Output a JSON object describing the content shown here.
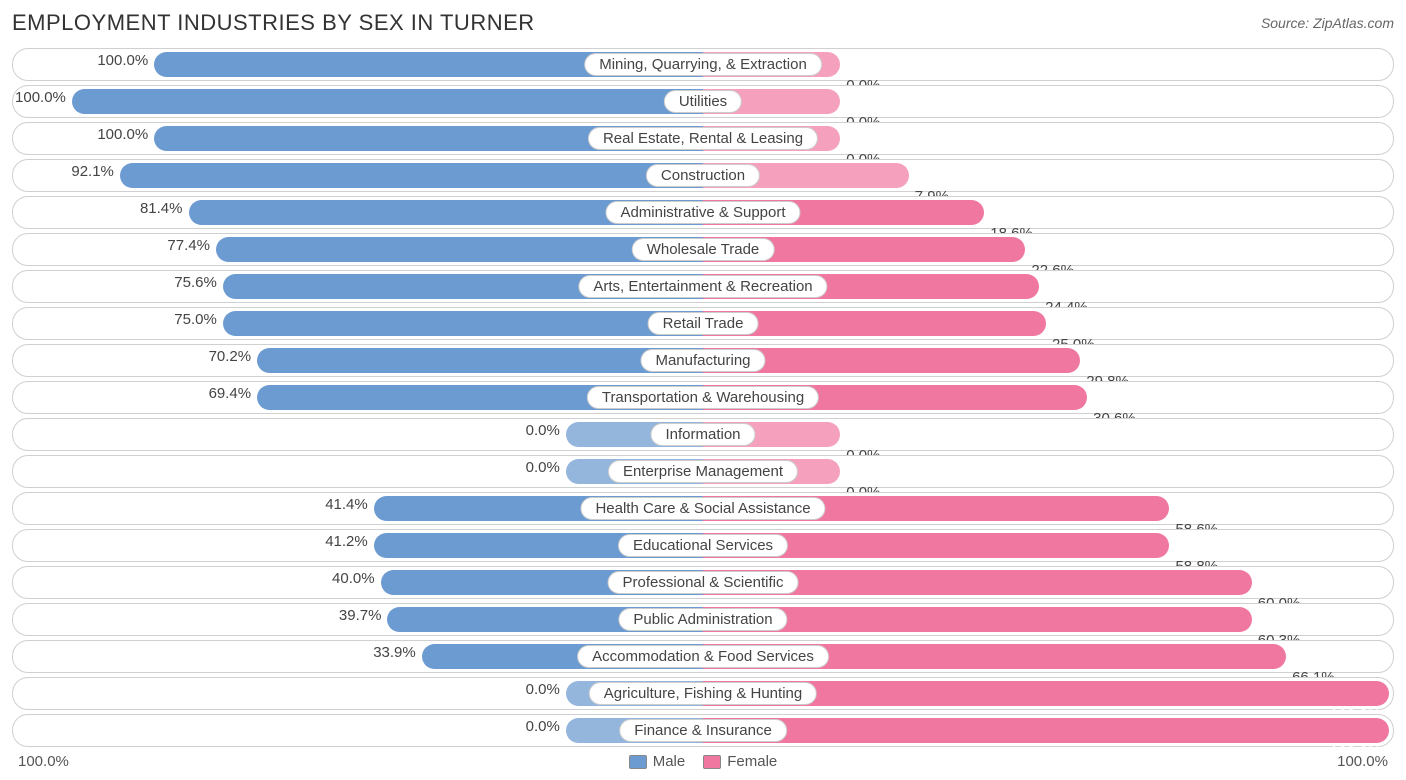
{
  "title": "EMPLOYMENT INDUSTRIES BY SEX IN TURNER",
  "source": "Source: ZipAtlas.com",
  "colors": {
    "male": "#6c9bd1",
    "male_light": "#94b6dd",
    "female": "#f078a0",
    "female_light": "#f5a1bd",
    "border": "#d0d0d0",
    "text": "#444444",
    "background": "#ffffff"
  },
  "legend": {
    "male_label": "Male",
    "female_label": "Female"
  },
  "axis": {
    "left": "100.0%",
    "right": "100.0%"
  },
  "chart": {
    "type": "diverging-bar",
    "default_bar_width_pct": 20,
    "rows": [
      {
        "category": "Mining, Quarrying, & Extraction",
        "male": 100.0,
        "female": 0.0,
        "male_width": 80,
        "female_width": 20,
        "female_light": true
      },
      {
        "category": "Utilities",
        "male": 100.0,
        "female": 0.0,
        "male_width": 92,
        "female_width": 20,
        "female_light": true
      },
      {
        "category": "Real Estate, Rental & Leasing",
        "male": 100.0,
        "female": 0.0,
        "male_width": 80,
        "female_width": 20,
        "female_light": true
      },
      {
        "category": "Construction",
        "male": 92.1,
        "female": 7.9,
        "male_width": 85,
        "female_width": 30,
        "female_light": true
      },
      {
        "category": "Administrative & Support",
        "male": 81.4,
        "female": 18.6,
        "male_width": 75,
        "female_width": 41
      },
      {
        "category": "Wholesale Trade",
        "male": 77.4,
        "female": 22.6,
        "male_width": 71,
        "female_width": 47
      },
      {
        "category": "Arts, Entertainment & Recreation",
        "male": 75.6,
        "female": 24.4,
        "male_width": 70,
        "female_width": 49
      },
      {
        "category": "Retail Trade",
        "male": 75.0,
        "female": 25.0,
        "male_width": 70,
        "female_width": 50
      },
      {
        "category": "Manufacturing",
        "male": 70.2,
        "female": 29.8,
        "male_width": 65,
        "female_width": 55
      },
      {
        "category": "Transportation & Warehousing",
        "male": 69.4,
        "female": 30.6,
        "male_width": 65,
        "female_width": 56
      },
      {
        "category": "Information",
        "male": 0.0,
        "female": 0.0,
        "male_width": 20,
        "female_width": 20,
        "male_light": true,
        "female_light": true
      },
      {
        "category": "Enterprise Management",
        "male": 0.0,
        "female": 0.0,
        "male_width": 20,
        "female_width": 20,
        "male_light": true,
        "female_light": true
      },
      {
        "category": "Health Care & Social Assistance",
        "male": 41.4,
        "female": 58.6,
        "male_width": 48,
        "female_width": 68
      },
      {
        "category": "Educational Services",
        "male": 41.2,
        "female": 58.8,
        "male_width": 48,
        "female_width": 68
      },
      {
        "category": "Professional & Scientific",
        "male": 40.0,
        "female": 60.0,
        "male_width": 47,
        "female_width": 80
      },
      {
        "category": "Public Administration",
        "male": 39.7,
        "female": 60.3,
        "male_width": 46,
        "female_width": 80
      },
      {
        "category": "Accommodation & Food Services",
        "male": 33.9,
        "female": 66.1,
        "male_width": 41,
        "female_width": 85
      },
      {
        "category": "Agriculture, Fishing & Hunting",
        "male": 0.0,
        "female": 100.0,
        "male_width": 20,
        "female_width": 100,
        "male_light": true
      },
      {
        "category": "Finance & Insurance",
        "male": 0.0,
        "female": 100.0,
        "male_width": 20,
        "female_width": 100,
        "male_light": true
      }
    ]
  }
}
